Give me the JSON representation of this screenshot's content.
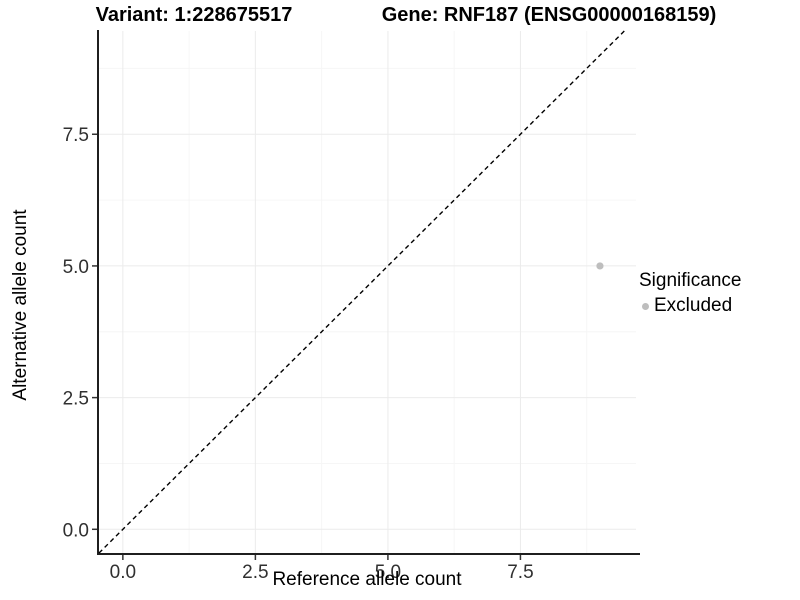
{
  "chart_data": {
    "type": "scatter",
    "title_left": "Variant: 1:228675517",
    "title_right": "Gene: RNF187 (ENSG00000168159)",
    "xlabel": "Reference allele count",
    "ylabel": "Alternative allele count",
    "xlim": [
      -0.45,
      9.68
    ],
    "ylim": [
      -0.45,
      9.46
    ],
    "x_major_ticks": [
      0,
      2.5,
      5,
      7.5
    ],
    "y_major_ticks": [
      0,
      2.5,
      5,
      7.5
    ],
    "x_tick_labels": [
      "0.0",
      "2.5",
      "5.0",
      "7.5"
    ],
    "y_tick_labels": [
      "0.0",
      "2.5",
      "5.0",
      "7.5"
    ],
    "x_minor_ticks": [
      1.25,
      3.75,
      6.25,
      8.75
    ],
    "y_minor_ticks": [
      1.25,
      3.75,
      6.25,
      8.75
    ],
    "grid": "major+minor",
    "reference_line": {
      "type": "identity y=x",
      "style": "dashed",
      "color": "#000000"
    },
    "series": [
      {
        "name": "Excluded",
        "color": "#bebebe",
        "points": [
          {
            "x": 9,
            "y": 5
          }
        ]
      }
    ],
    "legend": {
      "title": "Significance",
      "position": "right",
      "entries": [
        {
          "label": "Excluded",
          "color": "#bebebe"
        }
      ]
    }
  },
  "colors": {
    "background": "#ffffff",
    "major_grid": "#ebebeb",
    "minor_grid": "#f6f6f6",
    "axis_line": "#1f1f1f",
    "tick_mark": "#333333",
    "tick_label": "#303030"
  }
}
